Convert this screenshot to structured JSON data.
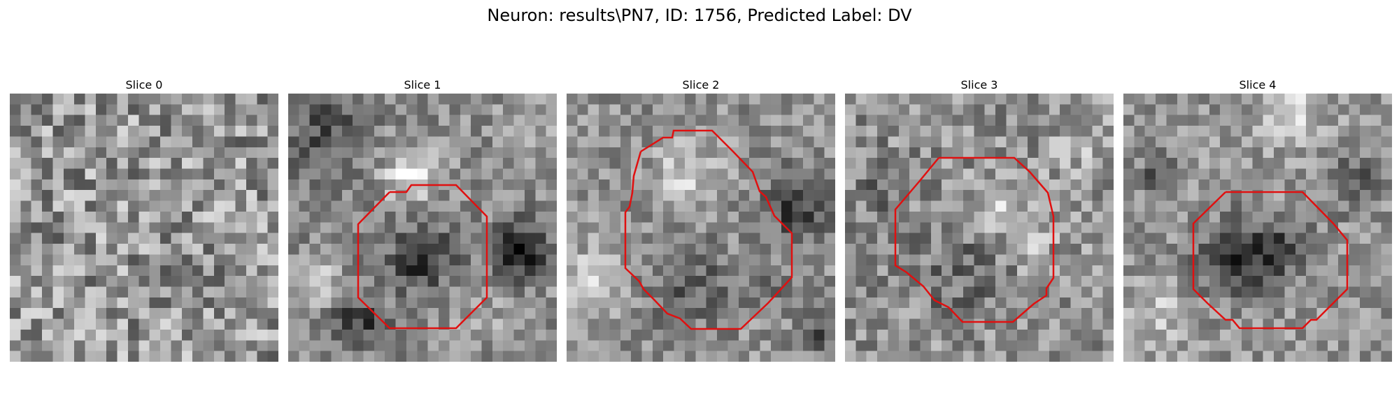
{
  "figure": {
    "title": "Neuron: results\\PN7, ID: 1756, Predicted Label: DV",
    "contour_color": "#e01010"
  },
  "slices": [
    {
      "label": "Slice 0",
      "has_contour": false,
      "texture": "noise"
    },
    {
      "label": "Slice 1",
      "has_contour": true,
      "texture": "ring-dark-bottom"
    },
    {
      "label": "Slice 2",
      "has_contour": true,
      "texture": "bright-center"
    },
    {
      "label": "Slice 3",
      "has_contour": true,
      "texture": "mixed"
    },
    {
      "label": "Slice 4",
      "has_contour": true,
      "texture": "dark-center"
    }
  ]
}
